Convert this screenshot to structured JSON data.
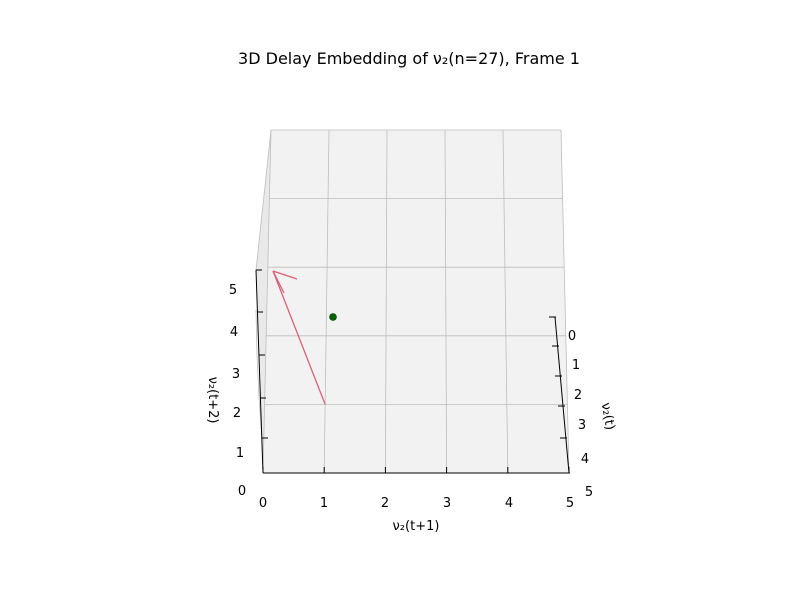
{
  "chart_data": {
    "type": "scatter",
    "title": "3D Delay Embedding of ν₂(n=27), Frame 1",
    "xlabel": "ν₂(t)",
    "ylabel": "ν₂(t+1)",
    "zlabel": "ν₂(t+2)",
    "xlim": [
      0,
      5
    ],
    "ylim": [
      0,
      5
    ],
    "zlim": [
      0,
      5
    ],
    "xticks": [
      "0",
      "1",
      "2",
      "3",
      "4",
      "5"
    ],
    "yticks": [
      "0",
      "1",
      "2",
      "3",
      "4",
      "5"
    ],
    "zticks": [
      "0",
      "1",
      "2",
      "3",
      "4",
      "5"
    ],
    "grid": true,
    "points": [
      {
        "x": 0,
        "y": 1,
        "z": 1
      }
    ],
    "arrows": [
      {
        "from": {
          "x": 0,
          "y": 1,
          "z": 1
        },
        "to": {
          "x": 0,
          "y": 0,
          "z": 2
        }
      }
    ],
    "colors": {
      "point": "#006400",
      "arrow": "#d9607a",
      "pane": "#f2f2f2",
      "grid": "#bdbdbd"
    }
  }
}
